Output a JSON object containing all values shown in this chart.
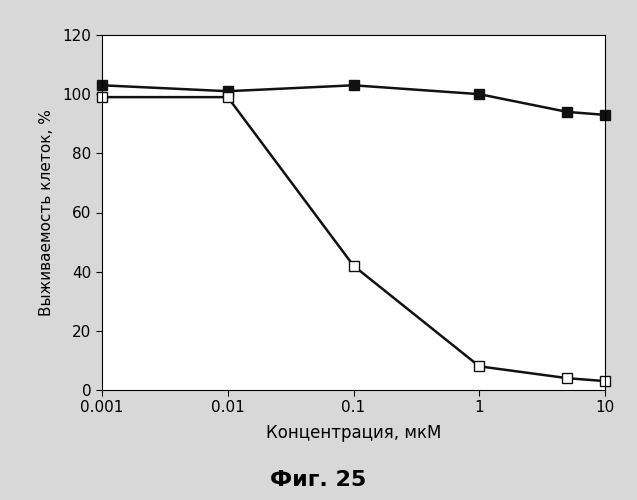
{
  "x": [
    0.001,
    0.01,
    0.1,
    1,
    5,
    10
  ],
  "series1_y": [
    103,
    101,
    103,
    100,
    94,
    93
  ],
  "series2_y": [
    99,
    99,
    42,
    8,
    4,
    3
  ],
  "series1_marker": "s",
  "series1_markerfacecolor": "#111111",
  "series1_markeredgecolor": "#111111",
  "series2_marker": "s",
  "series2_markerfacecolor": "white",
  "series2_markeredgecolor": "#111111",
  "line_color": "#111111",
  "xlabel": "Концентрация, мкМ",
  "ylabel": "Выживаемость клеток, %",
  "title": "Фиг. 25",
  "ylim": [
    0,
    120
  ],
  "yticks": [
    0,
    20,
    40,
    60,
    80,
    100,
    120
  ],
  "xtick_labels": [
    "0.001",
    "0.01",
    "0.1",
    "1",
    "10"
  ],
  "xtick_values": [
    0.001,
    0.01,
    0.1,
    1,
    10
  ],
  "figure_facecolor": "#d8d8d8",
  "axes_facecolor": "#ffffff",
  "marker_size": 7,
  "line_width": 1.8,
  "xlabel_fontsize": 12,
  "ylabel_fontsize": 11,
  "tick_fontsize": 11,
  "title_fontsize": 16
}
